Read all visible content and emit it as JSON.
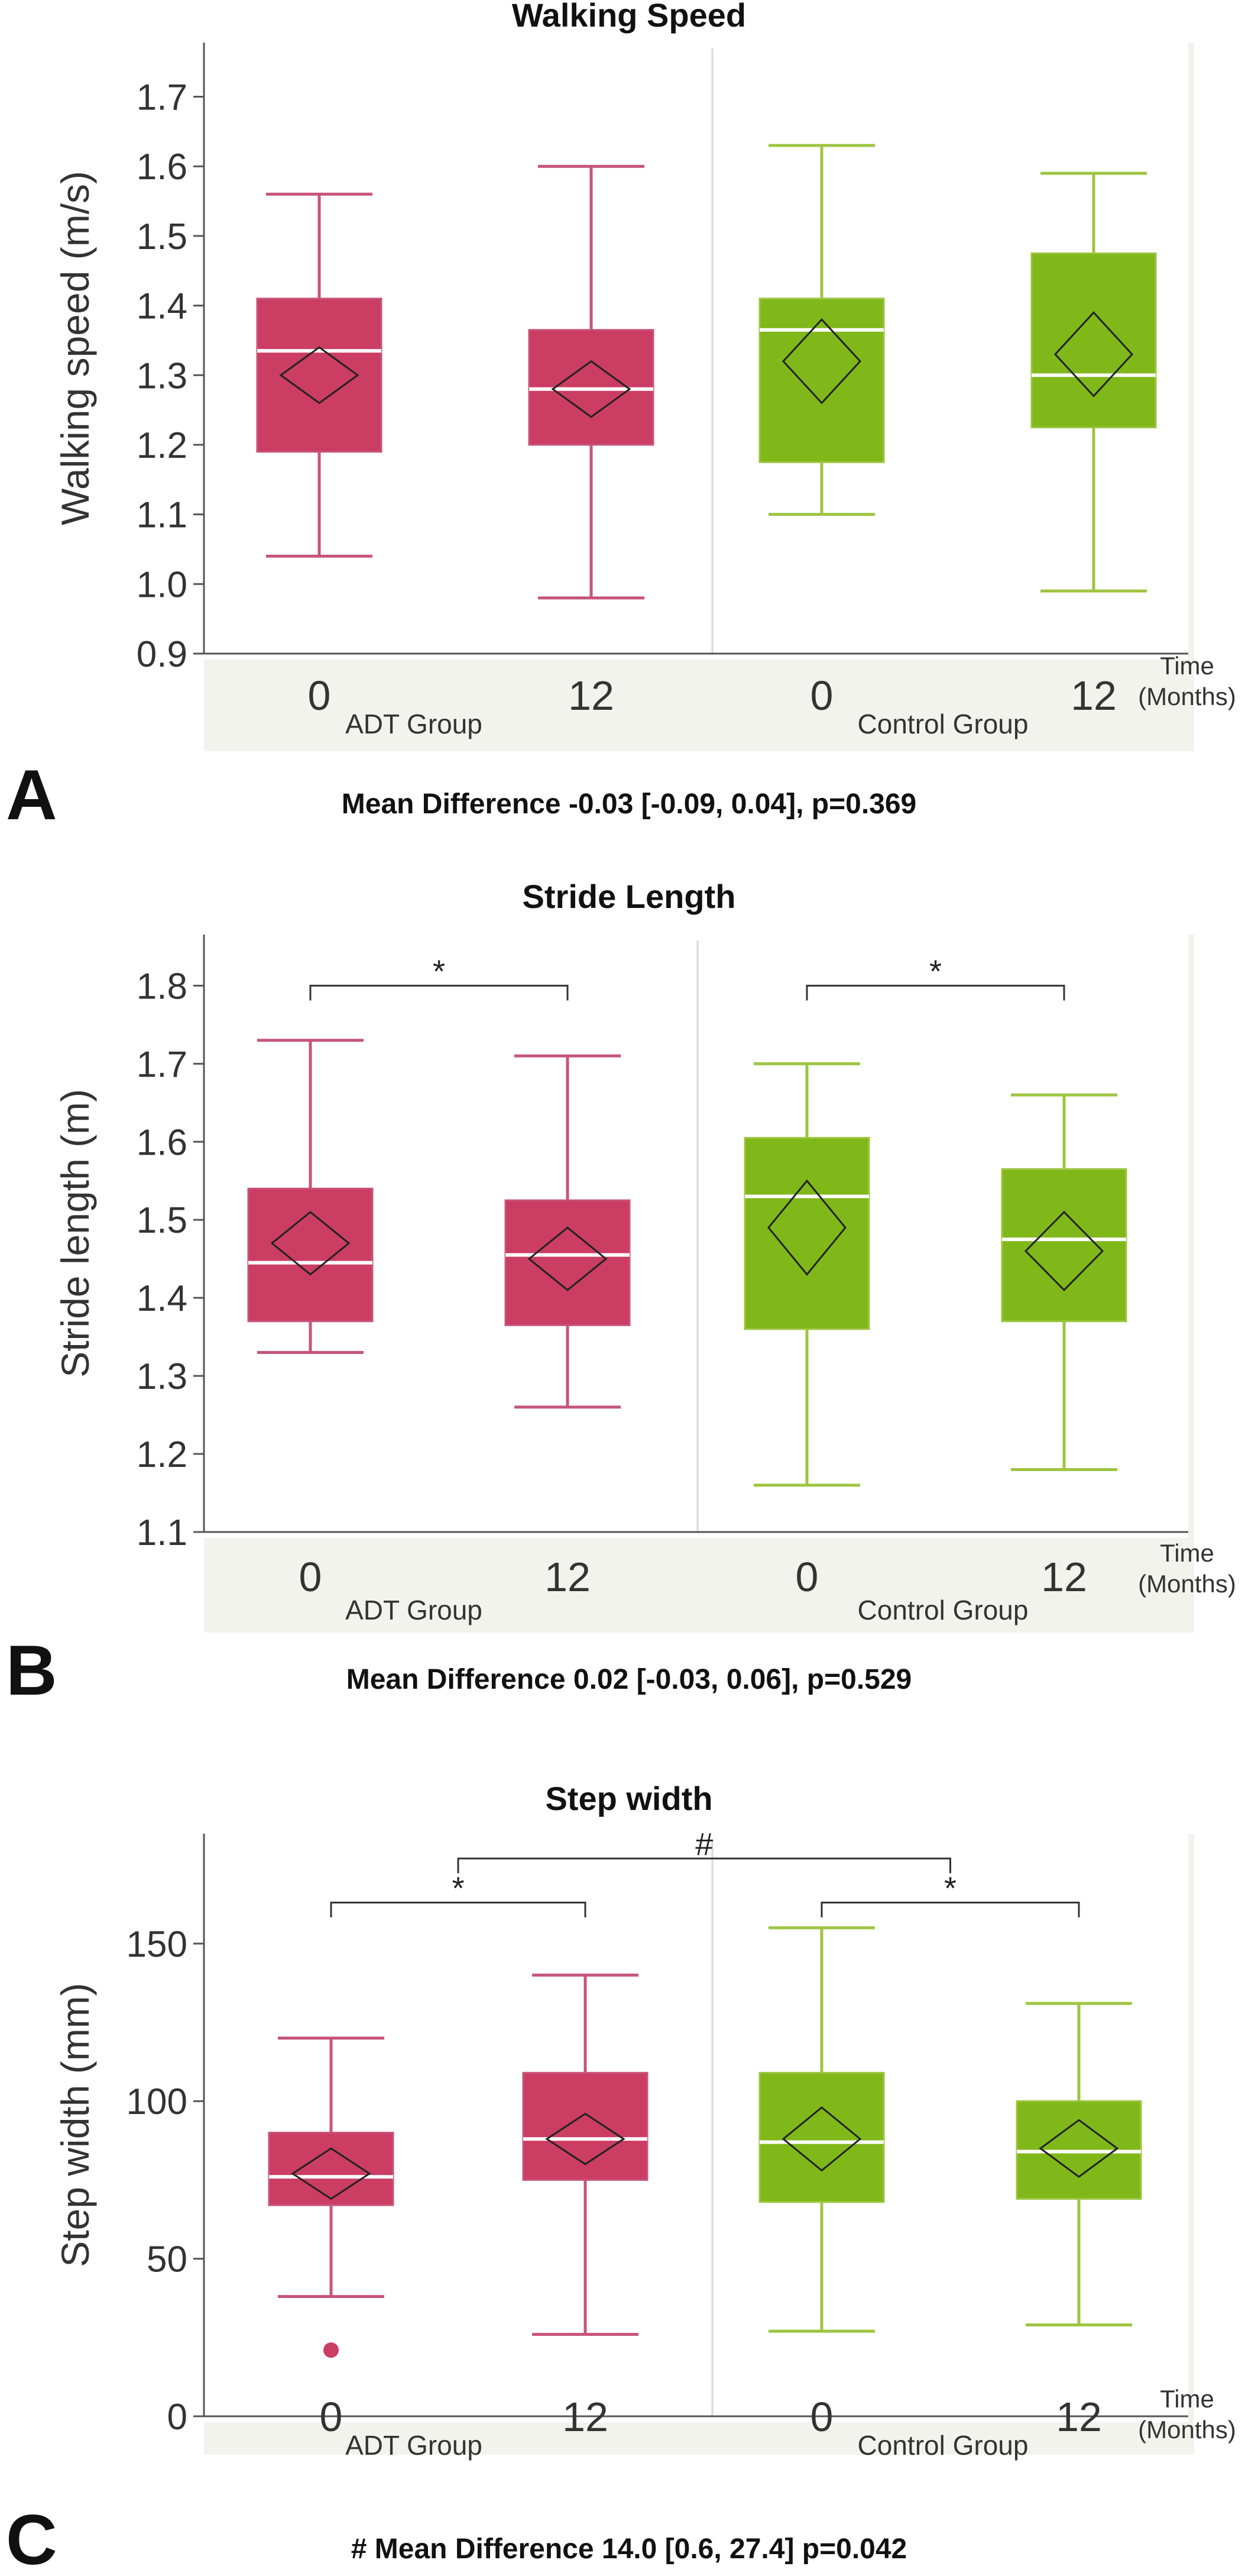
{
  "colors": {
    "adt": "#cc3d63",
    "adt_line": "#c7547b",
    "control": "#80b81a",
    "control_line": "#9dc540",
    "plot_bg": "#f3f3ee",
    "median": "#ffffff",
    "diamond": "#222222"
  },
  "time_label": [
    "Time",
    "(Months)"
  ],
  "chart_data": [
    {
      "type": "box",
      "panel_letter": "A",
      "title": "Walking Speed",
      "ylabel": "Walking speed (m/s)",
      "ylim": [
        0.9,
        1.72
      ],
      "yticks": [
        "0.9",
        "1.0",
        "1.1",
        "1.2",
        "1.3",
        "1.4",
        "1.5",
        "1.6",
        "1.7"
      ],
      "groups": [
        "ADT Group",
        "Control Group"
      ],
      "categories": [
        "0",
        "12",
        "0",
        "12"
      ],
      "boxes": [
        {
          "group": "ADT Group",
          "time": "0",
          "min": 1.04,
          "q1": 1.19,
          "median": 1.335,
          "q3": 1.41,
          "max": 1.56,
          "mean": 1.3,
          "ci": 0.04
        },
        {
          "group": "ADT Group",
          "time": "12",
          "min": 0.98,
          "q1": 1.2,
          "median": 1.28,
          "q3": 1.365,
          "max": 1.6,
          "mean": 1.28,
          "ci": 0.04
        },
        {
          "group": "Control Group",
          "time": "0",
          "min": 1.1,
          "q1": 1.175,
          "median": 1.365,
          "q3": 1.41,
          "max": 1.63,
          "mean": 1.32,
          "ci": 0.06
        },
        {
          "group": "Control Group",
          "time": "12",
          "min": 0.99,
          "q1": 1.225,
          "median": 1.3,
          "q3": 1.475,
          "max": 1.59,
          "mean": 1.33,
          "ci": 0.06
        }
      ],
      "outliers": [],
      "brackets": [],
      "caption": "Mean Difference -0.03 [-0.09, 0.04], p=0.369"
    },
    {
      "type": "box",
      "panel_letter": "B",
      "title": "Stride Length",
      "ylabel": "Stride length (m)",
      "ylim": [
        1.1,
        1.82
      ],
      "yticks": [
        "1.1",
        "1.2",
        "1.3",
        "1.4",
        "1.5",
        "1.6",
        "1.7",
        "1.8"
      ],
      "groups": [
        "ADT Group",
        "Control Group"
      ],
      "categories": [
        "0",
        "12",
        "0",
        "12"
      ],
      "boxes": [
        {
          "group": "ADT Group",
          "time": "0",
          "min": 1.33,
          "q1": 1.37,
          "median": 1.445,
          "q3": 1.54,
          "max": 1.73,
          "mean": 1.47,
          "ci": 0.04
        },
        {
          "group": "ADT Group",
          "time": "12",
          "min": 1.26,
          "q1": 1.365,
          "median": 1.455,
          "q3": 1.525,
          "max": 1.71,
          "mean": 1.45,
          "ci": 0.04
        },
        {
          "group": "Control Group",
          "time": "0",
          "min": 1.16,
          "q1": 1.36,
          "median": 1.53,
          "q3": 1.605,
          "max": 1.7,
          "mean": 1.49,
          "ci": 0.06
        },
        {
          "group": "Control Group",
          "time": "12",
          "min": 1.18,
          "q1": 1.37,
          "median": 1.475,
          "q3": 1.565,
          "max": 1.66,
          "mean": 1.46,
          "ci": 0.05
        }
      ],
      "outliers": [],
      "brackets": [
        {
          "from": 0,
          "to": 1,
          "level": 1.8,
          "label": "*"
        },
        {
          "from": 2,
          "to": 3,
          "level": 1.8,
          "label": "*"
        }
      ],
      "caption": "Mean Difference 0.02 [-0.03, 0.06], p=0.529"
    },
    {
      "type": "box",
      "panel_letter": "C",
      "title": "Step width",
      "ylabel": "Step width (mm)",
      "ylim": [
        0,
        183
      ],
      "yticks": [
        "0",
        "50",
        "100",
        "150"
      ],
      "groups": [
        "ADT Group",
        "Control Group"
      ],
      "categories": [
        "0",
        "12",
        "0",
        "12"
      ],
      "boxes": [
        {
          "group": "ADT Group",
          "time": "0",
          "min": 38,
          "q1": 67,
          "median": 76,
          "q3": 90,
          "max": 120,
          "mean": 77,
          "ci": 8
        },
        {
          "group": "ADT Group",
          "time": "12",
          "min": 26,
          "q1": 75,
          "median": 88,
          "q3": 109,
          "max": 140,
          "mean": 88,
          "ci": 8
        },
        {
          "group": "Control Group",
          "time": "0",
          "min": 27,
          "q1": 68,
          "median": 87,
          "q3": 109,
          "max": 155,
          "mean": 88,
          "ci": 10
        },
        {
          "group": "Control Group",
          "time": "12",
          "min": 29,
          "q1": 69,
          "median": 84,
          "q3": 100,
          "max": 131,
          "mean": 85,
          "ci": 9
        }
      ],
      "outliers": [
        {
          "box": 0,
          "value": 21
        }
      ],
      "brackets": [
        {
          "from": 0,
          "to": 1,
          "level": 163,
          "label": "*"
        },
        {
          "from": 2,
          "to": 3,
          "level": 163,
          "label": "*"
        },
        {
          "from": 0.5,
          "to": 2.5,
          "level": 177,
          "label": "#"
        }
      ],
      "caption": "# Mean Difference 14.0 [0.6, 27.4] p=0.042"
    }
  ]
}
